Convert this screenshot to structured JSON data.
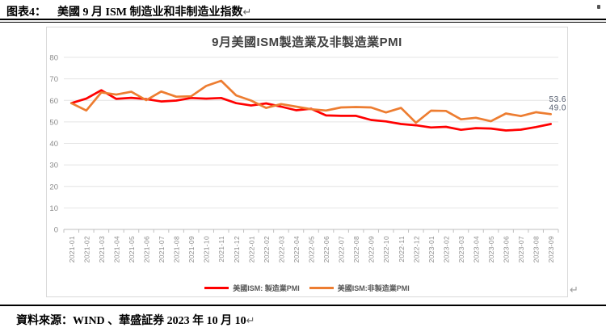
{
  "page": {
    "header": {
      "label": "图表4：",
      "title": "美國 9 月 ISM 制造业和非制造业指数",
      "return_mark": "↵"
    },
    "footer": {
      "text": "資料來源：WIND 、華盛証券 2023 年 10 月 10",
      "return_mark": "↵"
    },
    "chart_return_mark": "↵"
  },
  "chart_data": {
    "type": "line",
    "title": "9月美國ISM製造業及非製造業PMI",
    "xlabel": "",
    "ylabel": "",
    "ylim": [
      0,
      80
    ],
    "yticks": [
      0,
      10,
      20,
      30,
      40,
      50,
      60,
      70,
      80
    ],
    "grid": true,
    "legend_position": "bottom",
    "categories": [
      "2021-01",
      "2021-02",
      "2021-03",
      "2021-04",
      "2021-05",
      "2021-06",
      "2021-07",
      "2021-08",
      "2021-09",
      "2021-10",
      "2021-11",
      "2021-12",
      "2022-01",
      "2022-02",
      "2022-03",
      "2022-04",
      "2022-05",
      "2022-06",
      "2022-07",
      "2022-08",
      "2022-09",
      "2022-10",
      "2022-11",
      "2022-12",
      "2023-01",
      "2023-02",
      "2023-03",
      "2023-04",
      "2023-05",
      "2023-06",
      "2023-07",
      "2023-08",
      "2023-09"
    ],
    "series": [
      {
        "name": "美國ISM: 製造業PMI",
        "color": "#ff0000",
        "end_label": "49.0",
        "values": [
          58.7,
          60.8,
          64.7,
          60.7,
          61.2,
          60.6,
          59.5,
          59.9,
          61.1,
          60.8,
          61.1,
          58.7,
          57.6,
          58.6,
          57.1,
          55.4,
          56.1,
          53.0,
          52.8,
          52.8,
          50.9,
          50.2,
          49.0,
          48.4,
          47.4,
          47.7,
          46.3,
          47.1,
          46.9,
          46.0,
          46.4,
          47.6,
          49.0
        ]
      },
      {
        "name": "美國ISM:非製造業PMI",
        "color": "#ed7d31",
        "end_label": "53.6",
        "values": [
          58.7,
          55.3,
          63.7,
          62.7,
          64.0,
          60.1,
          64.1,
          61.7,
          61.9,
          66.7,
          69.1,
          62.3,
          59.9,
          56.5,
          58.3,
          57.1,
          55.9,
          55.3,
          56.7,
          56.9,
          56.7,
          54.4,
          56.5,
          49.6,
          55.2,
          55.1,
          51.2,
          51.9,
          50.3,
          53.9,
          52.7,
          54.5,
          53.6
        ]
      }
    ]
  }
}
